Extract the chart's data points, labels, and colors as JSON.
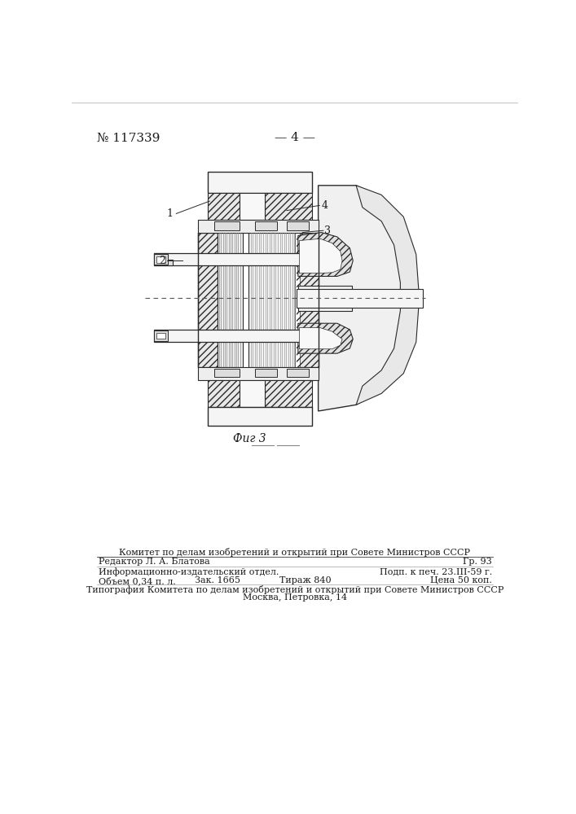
{
  "bg_color": "#ffffff",
  "header_left": "№ 117339",
  "header_center": "— 4 —",
  "fig_caption": "Фиг 3",
  "footer_line1": "Комитет по делам изобретений и открытий при Совете Министров СССР",
  "footer_line2_left": "Редактор Л. А. Блатова",
  "footer_line2_right": "Гр. 93",
  "footer_line3_left": "Информационно-издательский отдел.",
  "footer_line3_right": "Подп. к печ. 23.III-59 г.",
  "footer_line4_left": "Объем 0,34 п. л.",
  "footer_line4_mid1": "Зак. 1665",
  "footer_line4_mid2": "Тираж 840",
  "footer_line4_right": "Цена 50 коп.",
  "footer_line5": "Типография Комитета по делам изобретений и открытий при Совете Министров СССР",
  "footer_line6": "Москва, Петровка, 14",
  "text_color": "#1a1a1a",
  "line_color": "#333333",
  "label1": "1",
  "label2": "2",
  "label3": "3",
  "label4": "4"
}
